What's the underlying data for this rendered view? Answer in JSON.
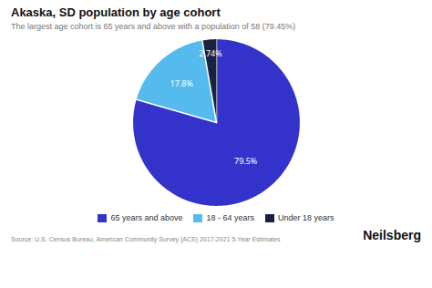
{
  "chart_data": {
    "type": "pie",
    "title": "Akaska, SD population by age cohort",
    "subtitle": "The largest age cohort is 65 years and above with a population of 58 (79.45%)",
    "categories": [
      "65 years and above",
      "18 - 64 years",
      "Under 18 years"
    ],
    "values": [
      79.45,
      17.81,
      2.74
    ],
    "value_labels": [
      "79.5%",
      "17.8%",
      "2.74%"
    ],
    "colors": [
      "#3333cc",
      "#55bbee",
      "#1a2240"
    ],
    "data_labels": true,
    "legend": "bottom",
    "annotations": [
      "Source: U.S. Census Bureau, American Community Survey (ACS) 2017-2021 5-Year Estimates",
      "Neilsberg"
    ]
  }
}
